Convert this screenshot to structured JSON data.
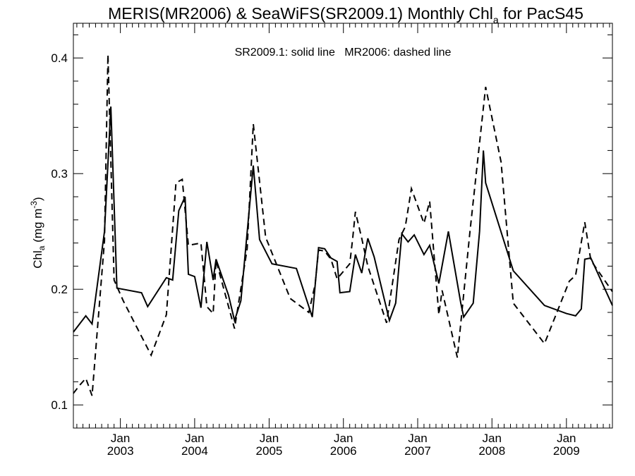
{
  "chart_data": {
    "type": "line",
    "title": {
      "before": "MERIS(MR2006) & SeaWiFS(SR2009.1) Monthly Chl",
      "subscript": "a",
      "after": " for PacS45"
    },
    "ylabel": {
      "main": "Chl",
      "subscript": "a",
      "units_open": " (mg m",
      "superscript": "-3",
      "units_close": ")"
    },
    "annotation": "SR2009.1: solid line   MR2006: dashed line",
    "xlim": [
      "2002-05-15",
      "2009-08-15"
    ],
    "ylim": [
      0.08,
      0.43
    ],
    "yticks": [
      0.1,
      0.2,
      0.3,
      0.4
    ],
    "ytick_labels": [
      "0.1",
      "0.2",
      "0.3",
      "0.4"
    ],
    "xticks": [
      {
        "date": "2003-01-01",
        "line1": "Jan",
        "line2": "2003"
      },
      {
        "date": "2004-01-01",
        "line1": "Jan",
        "line2": "2004"
      },
      {
        "date": "2005-01-01",
        "line1": "Jan",
        "line2": "2005"
      },
      {
        "date": "2006-01-01",
        "line1": "Jan",
        "line2": "2006"
      },
      {
        "date": "2007-01-01",
        "line1": "Jan",
        "line2": "2007"
      },
      {
        "date": "2008-01-01",
        "line1": "Jan",
        "line2": "2008"
      },
      {
        "date": "2009-01-01",
        "line1": "Jan",
        "line2": "2009"
      }
    ],
    "grid": false,
    "series": [
      {
        "name": "SR2009.1",
        "style": "solid",
        "color": "#000000",
        "points": [
          [
            "2002-05-15",
            0.163
          ],
          [
            "2002-07-15",
            0.177
          ],
          [
            "2002-08-15",
            0.17
          ],
          [
            "2002-10-15",
            0.25
          ],
          [
            "2002-11-15",
            0.358
          ],
          [
            "2002-12-15",
            0.201
          ],
          [
            "2003-04-15",
            0.197
          ],
          [
            "2003-05-15",
            0.185
          ],
          [
            "2003-08-15",
            0.21
          ],
          [
            "2003-09-15",
            0.208
          ],
          [
            "2003-10-15",
            0.268
          ],
          [
            "2003-11-15",
            0.28
          ],
          [
            "2003-12-01",
            0.213
          ],
          [
            "2004-01-01",
            0.211
          ],
          [
            "2004-02-01",
            0.184
          ],
          [
            "2004-03-01",
            0.241
          ],
          [
            "2004-04-01",
            0.208
          ],
          [
            "2004-04-15",
            0.226
          ],
          [
            "2004-06-15",
            0.195
          ],
          [
            "2004-07-15",
            0.173
          ],
          [
            "2004-08-15",
            0.19
          ],
          [
            "2004-10-15",
            0.307
          ],
          [
            "2004-11-15",
            0.243
          ],
          [
            "2005-01-15",
            0.222
          ],
          [
            "2005-05-15",
            0.218
          ],
          [
            "2005-08-01",
            0.176
          ],
          [
            "2005-09-01",
            0.236
          ],
          [
            "2005-10-01",
            0.235
          ],
          [
            "2005-11-01",
            0.227
          ],
          [
            "2005-12-01",
            0.224
          ],
          [
            "2005-12-15",
            0.197
          ],
          [
            "2006-02-01",
            0.198
          ],
          [
            "2006-03-01",
            0.23
          ],
          [
            "2006-04-01",
            0.214
          ],
          [
            "2006-05-01",
            0.244
          ],
          [
            "2006-06-01",
            0.228
          ],
          [
            "2006-08-15",
            0.173
          ],
          [
            "2006-09-15",
            0.188
          ],
          [
            "2006-10-15",
            0.248
          ],
          [
            "2006-11-15",
            0.241
          ],
          [
            "2006-12-15",
            0.247
          ],
          [
            "2007-02-01",
            0.23
          ],
          [
            "2007-03-01",
            0.238
          ],
          [
            "2007-04-15",
            0.205
          ],
          [
            "2007-06-01",
            0.25
          ],
          [
            "2007-08-01",
            0.188
          ],
          [
            "2007-08-15",
            0.176
          ],
          [
            "2007-10-01",
            0.188
          ],
          [
            "2007-11-01",
            0.25
          ],
          [
            "2007-11-20",
            0.32
          ],
          [
            "2007-12-01",
            0.292
          ],
          [
            "2008-04-15",
            0.216
          ],
          [
            "2008-09-15",
            0.186
          ],
          [
            "2009-01-01",
            0.179
          ],
          [
            "2009-02-15",
            0.177
          ],
          [
            "2009-03-15",
            0.183
          ],
          [
            "2009-04-01",
            0.226
          ],
          [
            "2009-05-01",
            0.227
          ],
          [
            "2009-08-15",
            0.186
          ]
        ]
      },
      {
        "name": "MR2006",
        "style": "dashed",
        "color": "#000000",
        "points": [
          [
            "2002-05-15",
            0.11
          ],
          [
            "2002-06-15",
            0.117
          ],
          [
            "2002-07-15",
            0.123
          ],
          [
            "2002-08-15",
            0.108
          ],
          [
            "2002-10-15",
            0.242
          ],
          [
            "2002-11-01",
            0.403
          ],
          [
            "2002-12-01",
            0.208
          ],
          [
            "2003-01-15",
            0.19
          ],
          [
            "2003-06-01",
            0.143
          ],
          [
            "2003-08-15",
            0.178
          ],
          [
            "2003-10-01",
            0.292
          ],
          [
            "2003-11-01",
            0.295
          ],
          [
            "2003-12-01",
            0.238
          ],
          [
            "2004-02-01",
            0.24
          ],
          [
            "2004-03-01",
            0.185
          ],
          [
            "2004-04-01",
            0.179
          ],
          [
            "2004-04-15",
            0.225
          ],
          [
            "2004-07-15",
            0.166
          ],
          [
            "2004-09-15",
            0.235
          ],
          [
            "2004-10-15",
            0.343
          ],
          [
            "2004-12-15",
            0.245
          ],
          [
            "2005-04-15",
            0.192
          ],
          [
            "2005-07-15",
            0.18
          ],
          [
            "2005-08-15",
            0.204
          ],
          [
            "2005-09-01",
            0.234
          ],
          [
            "2005-10-01",
            0.233
          ],
          [
            "2005-11-01",
            0.226
          ],
          [
            "2005-12-01",
            0.209
          ],
          [
            "2006-02-01",
            0.222
          ],
          [
            "2006-02-15",
            0.243
          ],
          [
            "2006-03-01",
            0.267
          ],
          [
            "2006-04-01",
            0.244
          ],
          [
            "2006-05-01",
            0.22
          ],
          [
            "2006-08-01",
            0.171
          ],
          [
            "2006-10-01",
            0.243
          ],
          [
            "2006-11-01",
            0.254
          ],
          [
            "2006-12-01",
            0.287
          ],
          [
            "2007-02-01",
            0.257
          ],
          [
            "2007-03-01",
            0.276
          ],
          [
            "2007-04-15",
            0.178
          ],
          [
            "2007-05-01",
            0.199
          ],
          [
            "2007-07-15",
            0.141
          ],
          [
            "2007-09-15",
            0.25
          ],
          [
            "2007-12-01",
            0.375
          ],
          [
            "2008-02-15",
            0.31
          ],
          [
            "2008-04-15",
            0.188
          ],
          [
            "2008-09-15",
            0.153
          ],
          [
            "2009-01-15",
            0.207
          ],
          [
            "2009-02-15",
            0.212
          ],
          [
            "2009-04-01",
            0.258
          ],
          [
            "2009-05-01",
            0.225
          ],
          [
            "2009-08-15",
            0.198
          ]
        ]
      }
    ]
  }
}
